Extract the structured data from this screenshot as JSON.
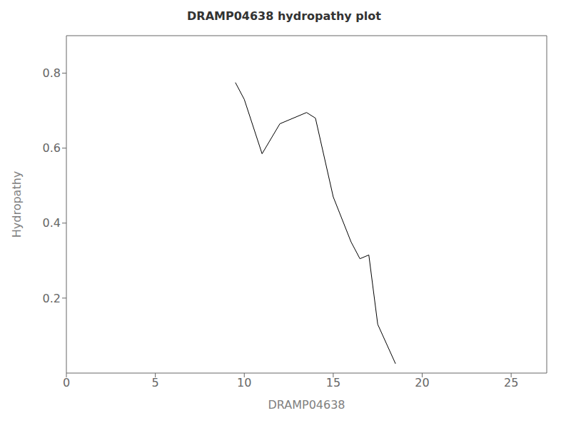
{
  "chart_data": {
    "type": "line",
    "title": "DRAMP04638 hydropathy plot",
    "xlabel": "DRAMP04638",
    "ylabel": "Hydropathy",
    "x": [
      9.5,
      10.0,
      11.0,
      12.0,
      13.5,
      14.0,
      15.0,
      16.0,
      16.5,
      17.0,
      17.5,
      18.5
    ],
    "values": [
      0.775,
      0.73,
      0.585,
      0.665,
      0.695,
      0.68,
      0.47,
      0.35,
      0.305,
      0.315,
      0.13,
      0.025
    ],
    "xlim": [
      0,
      27
    ],
    "ylim": [
      0,
      0.9
    ],
    "xticks": [
      0,
      5,
      10,
      15,
      20,
      25
    ],
    "yticks": [
      0.2,
      0.4,
      0.6,
      0.8
    ],
    "color": "#000000",
    "grid": false
  }
}
